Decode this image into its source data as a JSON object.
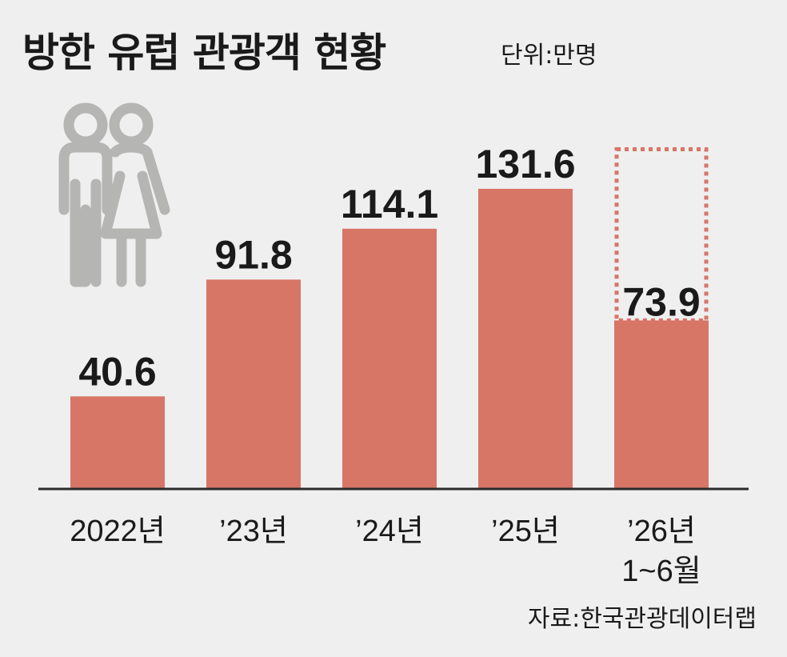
{
  "header": {
    "title": "방한 유럽 관광객 현황",
    "unit": "단위:만명"
  },
  "footer": {
    "source": "자료:한국관광데이터랩"
  },
  "icons": {
    "people": "people-icon"
  },
  "colors": {
    "bar": "#d77666",
    "projection_outline": "#d77666",
    "icon": "#b5b5b4",
    "axis": "#2a2a2a",
    "background": "#efefef"
  },
  "chart_data": {
    "type": "bar",
    "title": "방한 유럽 관광객 현황",
    "unit": "단위:만명",
    "categories": [
      [
        "2022년"
      ],
      [
        "’23년"
      ],
      [
        "’24년"
      ],
      [
        "’25년"
      ],
      [
        "’26년",
        "1~6월"
      ]
    ],
    "values": [
      40.6,
      91.8,
      114.1,
      131.6,
      73.9
    ],
    "value_labels": [
      "40.6",
      "91.8",
      "114.1",
      "131.6",
      "73.9"
    ],
    "projection_outline_on_last_bar": true,
    "ylim": [
      0,
      150
    ],
    "grid": false,
    "legend": "none"
  }
}
